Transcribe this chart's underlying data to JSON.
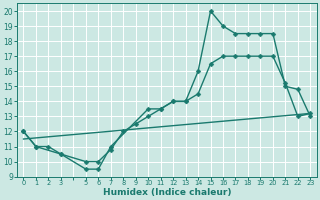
{
  "line1_x": [
    0,
    1,
    3,
    5,
    6,
    7,
    10,
    11,
    12,
    13,
    14,
    15,
    16,
    17,
    18,
    19,
    20,
    21,
    22,
    23
  ],
  "line1_y": [
    12,
    11,
    10.5,
    9.5,
    9.5,
    11,
    13.5,
    13.5,
    14,
    14,
    16,
    20,
    19,
    18.5,
    18.5,
    18.5,
    18.5,
    15,
    14.8,
    13
  ],
  "line2_x": [
    0,
    1,
    2,
    3,
    5,
    6,
    7,
    8,
    9,
    10,
    11,
    12,
    13,
    14,
    15,
    16,
    17,
    18,
    19,
    20,
    21,
    22,
    23
  ],
  "line2_y": [
    12,
    11,
    11,
    10.5,
    10,
    10,
    10.8,
    12,
    12.5,
    13,
    13.5,
    14,
    14,
    14.5,
    16.5,
    17,
    17,
    17,
    17,
    17,
    15.2,
    13,
    13.2
  ],
  "line3_x": [
    0,
    23
  ],
  "line3_y": [
    11.5,
    13.2
  ],
  "color": "#1a7a6e",
  "bg_color": "#cce8e3",
  "grid_color": "#b0d8d0",
  "xlabel": "Humidex (Indice chaleur)",
  "xlim": [
    -0.5,
    23.5
  ],
  "ylim": [
    9,
    20.5
  ],
  "yticks": [
    9,
    10,
    11,
    12,
    13,
    14,
    15,
    16,
    17,
    18,
    19,
    20
  ],
  "xticks": [
    0,
    1,
    2,
    3,
    5,
    6,
    7,
    8,
    9,
    10,
    11,
    12,
    13,
    14,
    15,
    16,
    17,
    18,
    19,
    20,
    21,
    22,
    23
  ],
  "xtick_labels": [
    "0",
    "1",
    "2",
    "3",
    "5",
    "6",
    "7",
    "8",
    "9",
    "10",
    "11",
    "12",
    "13",
    "14",
    "15",
    "16",
    "17",
    "18",
    "19",
    "20",
    "21",
    "22",
    "23"
  ],
  "marker": "D",
  "markersize": 2.5,
  "linewidth": 1.0,
  "xlabel_fontsize": 6.5,
  "ytick_fontsize": 5.5,
  "xtick_fontsize": 4.8
}
